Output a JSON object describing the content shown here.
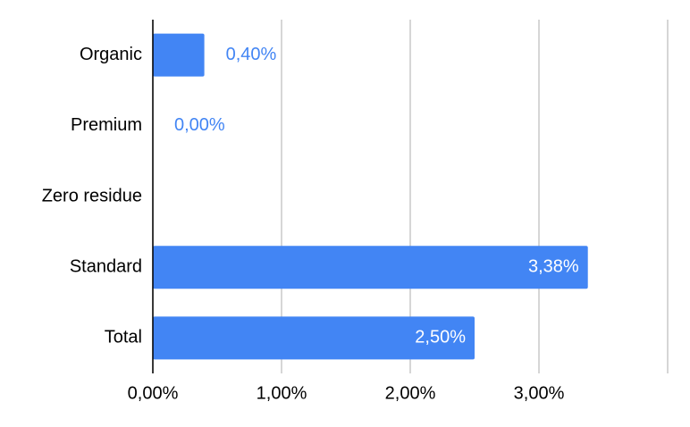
{
  "chart_data": {
    "type": "bar",
    "orientation": "horizontal",
    "categories": [
      "Organic",
      "Premium",
      "Zero residue",
      "Standard",
      "Total"
    ],
    "values": [
      0.4,
      0,
      null,
      3.38,
      2.5
    ],
    "value_labels": [
      "0,40%",
      "0,00%",
      null,
      "3,38%",
      "2,50%"
    ],
    "color": "#4285f4",
    "xlim": [
      0,
      4
    ],
    "xticks": [
      {
        "value": 0,
        "label": "0,00%"
      },
      {
        "value": 1,
        "label": "1,00%"
      },
      {
        "value": 2,
        "label": "2,00%"
      },
      {
        "value": 3,
        "label": "3,00%"
      }
    ],
    "grid": true
  }
}
